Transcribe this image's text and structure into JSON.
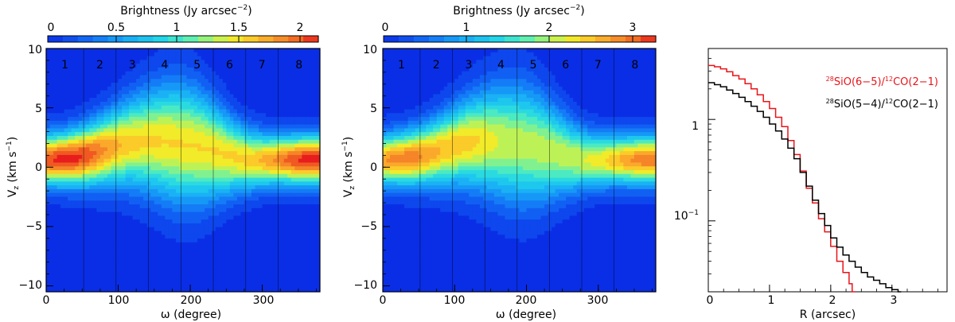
{
  "chart_data": [
    {
      "type": "heatmap",
      "colorbar": {
        "title": "Brightness (Jy arcsec",
        "title_exp": "−2",
        "ticks": [
          "0",
          "0.5",
          "1",
          "1.5",
          "2"
        ],
        "range": [
          0,
          2.1
        ]
      },
      "xlabel": "ω (degree)",
      "ylabel": {
        "base": "V",
        "sub": "z",
        "units": " (km s",
        "exp": "−1",
        "close": ")"
      },
      "xlim": [
        0,
        380
      ],
      "ylim": [
        -10.5,
        10
      ],
      "xticks": [
        "0",
        "100",
        "200",
        "300"
      ],
      "yticks": [
        "−10",
        "−5",
        "0",
        "5",
        "10"
      ],
      "sectors": [
        "1",
        "2",
        "3",
        "4",
        "5",
        "6",
        "7",
        "8"
      ],
      "sector_boundaries_deg": [
        52,
        97,
        142,
        187,
        232,
        277,
        322
      ],
      "peak_brightness": 2.1
    },
    {
      "type": "heatmap",
      "colorbar": {
        "title": "Brightness (Jy arcsec",
        "title_exp": "−2",
        "ticks": [
          "0",
          "1",
          "2",
          "3"
        ],
        "range": [
          0,
          3.2
        ]
      },
      "xlabel": "ω (degree)",
      "ylabel": {
        "base": "V",
        "sub": "z",
        "units": " (km s",
        "exp": "−1",
        "close": ")"
      },
      "xlim": [
        0,
        380
      ],
      "ylim": [
        -10.5,
        10
      ],
      "xticks": [
        "0",
        "100",
        "200",
        "300"
      ],
      "yticks": [
        "−10",
        "−5",
        "0",
        "5",
        "10"
      ],
      "sectors": [
        "1",
        "2",
        "3",
        "4",
        "5",
        "6",
        "7",
        "8"
      ],
      "sector_boundaries_deg": [
        52,
        97,
        142,
        187,
        232,
        277,
        322
      ],
      "peak_brightness": 3.2
    },
    {
      "type": "line",
      "scale": "log-y",
      "xlabel": "R (arcsec)",
      "xlim": [
        0,
        3.9
      ],
      "ylim": [
        0.02,
        5
      ],
      "xticks": [
        "0",
        "1",
        "2",
        "3"
      ],
      "yticks": [
        {
          "value": 1,
          "base": "1",
          "exp": ""
        },
        {
          "value": 0.1,
          "base": "10",
          "exp": "−1"
        }
      ],
      "series": [
        {
          "name": "28SiO(6-5)/12CO(2-1)",
          "legend": {
            "iso1": "28",
            "mol1": "SiO(6−5)/",
            "iso2": "12",
            "mol2": "CO(2−1)"
          },
          "color": "#e8141a",
          "x": [
            0,
            0.1,
            0.2,
            0.3,
            0.4,
            0.5,
            0.6,
            0.7,
            0.8,
            0.9,
            1.0,
            1.1,
            1.2,
            1.3,
            1.4,
            1.5,
            1.6,
            1.7,
            1.8,
            1.9,
            2.0,
            2.1,
            2.2,
            2.3,
            2.35
          ],
          "y": [
            3.4,
            3.3,
            3.15,
            2.95,
            2.7,
            2.5,
            2.25,
            2.0,
            1.75,
            1.5,
            1.28,
            1.05,
            0.85,
            0.62,
            0.45,
            0.31,
            0.21,
            0.15,
            0.105,
            0.078,
            0.056,
            0.04,
            0.031,
            0.024,
            0.02
          ]
        },
        {
          "name": "28SiO(5-4)/12CO(2-1)",
          "legend": {
            "iso1": "28",
            "mol1": "SiO(5−4)/",
            "iso2": "12",
            "mol2": "CO(2−1)"
          },
          "color": "#000000",
          "x": [
            0,
            0.1,
            0.2,
            0.3,
            0.4,
            0.5,
            0.6,
            0.7,
            0.8,
            0.9,
            1.0,
            1.1,
            1.2,
            1.3,
            1.4,
            1.5,
            1.6,
            1.7,
            1.8,
            1.9,
            2.0,
            2.1,
            2.2,
            2.3,
            2.4,
            2.5,
            2.6,
            2.7,
            2.8,
            2.9,
            3.0,
            3.1
          ],
          "y": [
            2.3,
            2.2,
            2.1,
            1.95,
            1.8,
            1.65,
            1.5,
            1.35,
            1.2,
            1.05,
            0.9,
            0.77,
            0.64,
            0.52,
            0.41,
            0.3,
            0.22,
            0.16,
            0.118,
            0.09,
            0.068,
            0.055,
            0.046,
            0.04,
            0.035,
            0.031,
            0.028,
            0.026,
            0.024,
            0.022,
            0.021,
            0.02
          ]
        }
      ]
    }
  ]
}
